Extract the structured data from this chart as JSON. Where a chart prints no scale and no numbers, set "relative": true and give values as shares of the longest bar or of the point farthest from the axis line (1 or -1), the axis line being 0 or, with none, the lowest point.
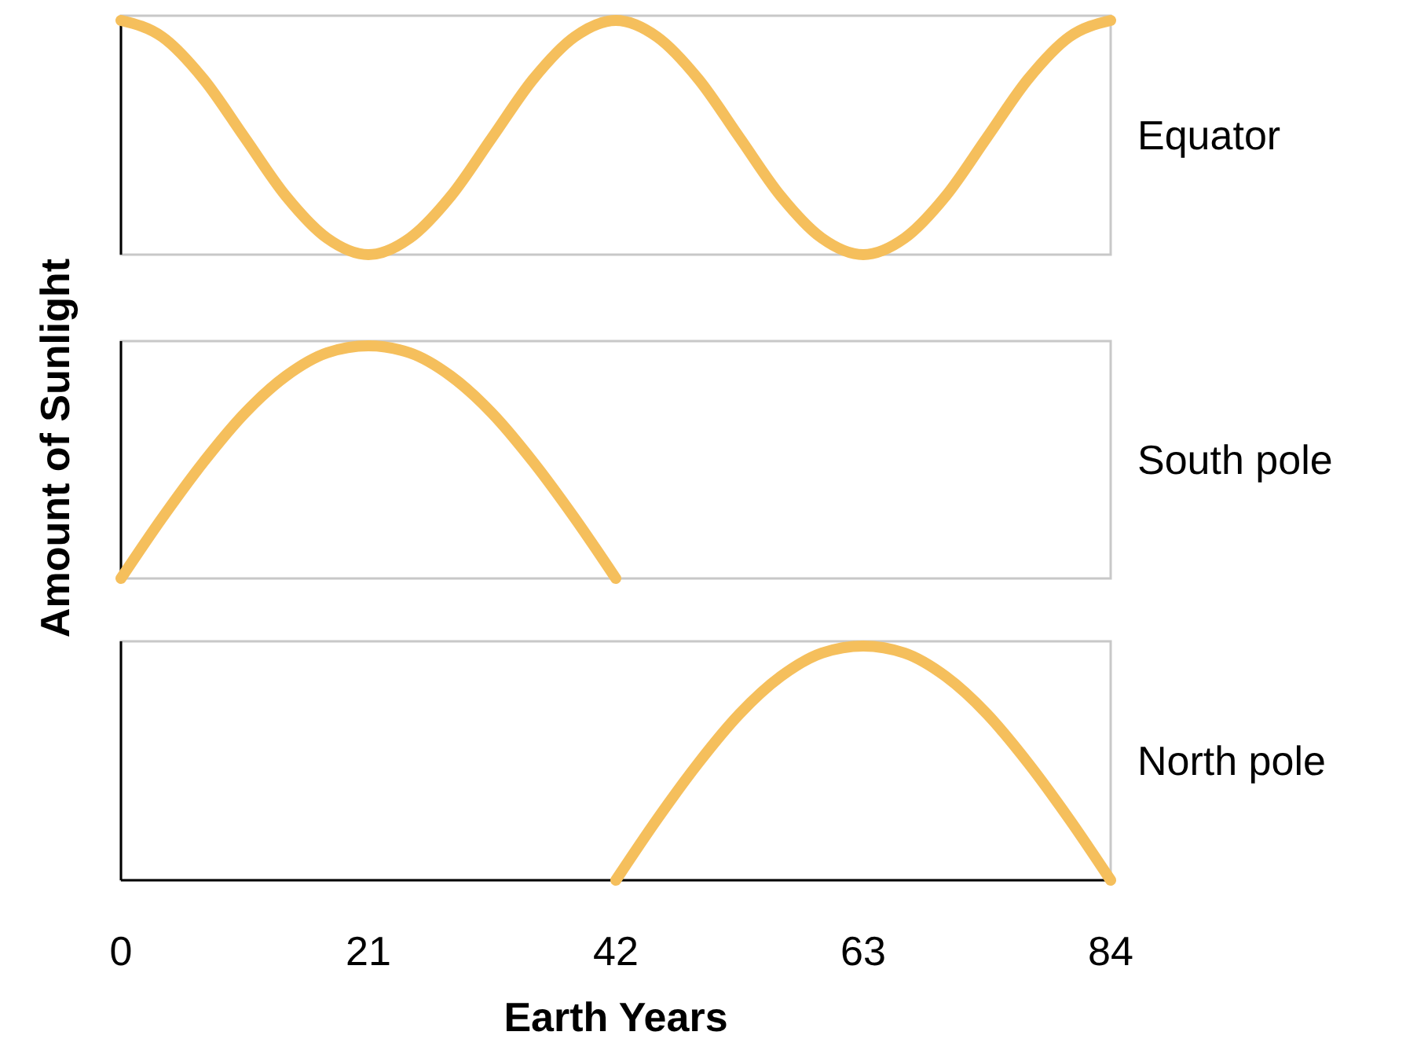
{
  "chart_data": [
    {
      "type": "line",
      "relative": true,
      "xlim": [
        0,
        84
      ],
      "tick_labels": false,
      "series": [
        {
          "name": "Equator",
          "color": "#f5bf5c",
          "x": [
            0,
            3.5,
            7,
            10.5,
            14,
            17.5,
            21,
            24.5,
            28,
            31.5,
            35,
            38.5,
            42,
            45.5,
            49,
            52.5,
            56,
            59.5,
            63,
            66.5,
            70,
            73.5,
            77,
            80.5,
            84
          ],
          "values": [
            1,
            0.93,
            0.75,
            0.5,
            0.25,
            0.07,
            0,
            0.07,
            0.25,
            0.5,
            0.75,
            0.93,
            1,
            0.93,
            0.75,
            0.5,
            0.25,
            0.07,
            0,
            0.07,
            0.25,
            0.5,
            0.75,
            0.93,
            1
          ]
        }
      ]
    },
    {
      "type": "line",
      "ylabel": "Amount of Sunlight",
      "relative": true,
      "xlim": [
        0,
        84
      ],
      "tick_labels": false,
      "series": [
        {
          "name": "South pole",
          "color": "#f5bf5c",
          "x": [
            0,
            3.5,
            7,
            10.5,
            14,
            17.5,
            21,
            24.5,
            28,
            31.5,
            35,
            38.5,
            42
          ],
          "values": [
            0,
            0.26,
            0.5,
            0.71,
            0.87,
            0.97,
            1,
            0.97,
            0.87,
            0.71,
            0.5,
            0.26,
            0
          ]
        }
      ]
    },
    {
      "type": "line",
      "xlabel": "Earth Years",
      "relative": true,
      "xlim": [
        0,
        84
      ],
      "xticks": [
        0,
        21,
        42,
        63,
        84
      ],
      "tick_labels": "x",
      "series": [
        {
          "name": "North pole",
          "color": "#f5bf5c",
          "x": [
            42,
            45.5,
            49,
            52.5,
            56,
            59.5,
            63,
            66.5,
            70,
            73.5,
            77,
            80.5,
            84
          ],
          "values": [
            0,
            0.26,
            0.5,
            0.71,
            0.87,
            0.97,
            1,
            0.97,
            0.87,
            0.71,
            0.5,
            0.26,
            0
          ]
        }
      ]
    }
  ]
}
